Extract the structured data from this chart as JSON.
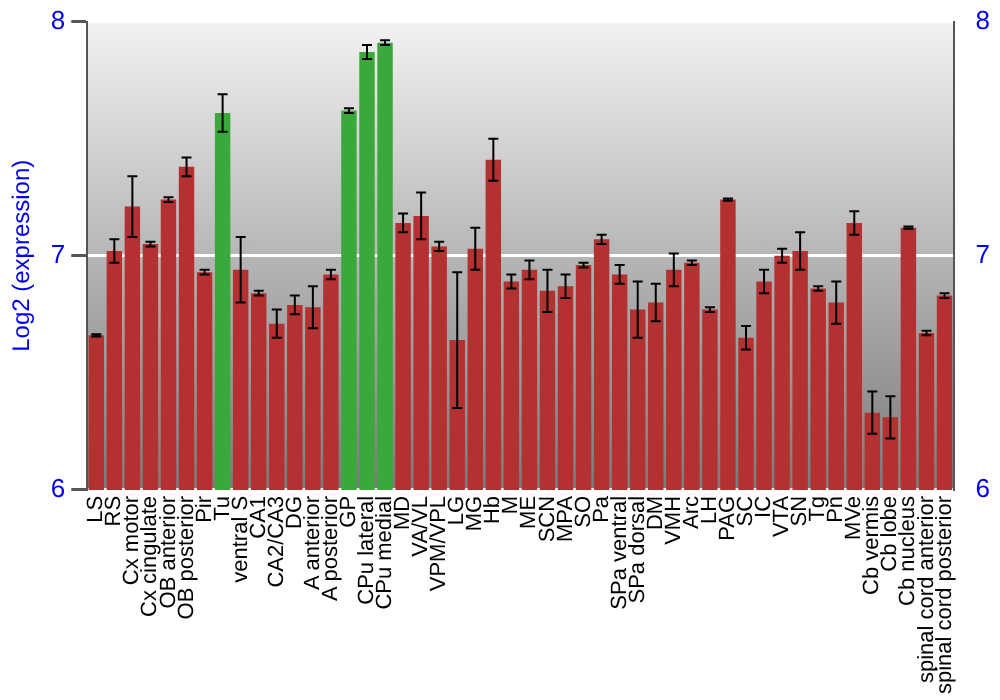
{
  "chart_data": {
    "type": "bar",
    "ylabel": "Log2 (expression)",
    "categories": [
      "LS",
      "RS",
      "Cx motor",
      "Cx cingulate",
      "OB anterior",
      "OB posterior",
      "Pir",
      "Tu",
      "ventral S",
      "CA1",
      "CA2/CA3",
      "DG",
      "A anterior",
      "A posterior",
      "GP",
      "CPu lateral",
      "CPu medial",
      "MD",
      "VA/VL",
      "VPM/VPL",
      "LG",
      "MG",
      "Hb",
      "M",
      "ME",
      "SCN",
      "MPA",
      "SO",
      "Pa",
      "SPa ventral",
      "SPa dorsal",
      "DM",
      "VMH",
      "Arc",
      "LH",
      "PAG",
      "SC",
      "IC",
      "VTA",
      "SN",
      "Tg",
      "Pn",
      "MVe",
      "Cb vermis",
      "Cb lobe",
      "Cb nucleus",
      "spinal cord anterior",
      "spinal cord posterior"
    ],
    "values": [
      6.66,
      7.02,
      7.21,
      7.05,
      7.24,
      7.38,
      6.93,
      7.61,
      6.94,
      6.84,
      6.71,
      6.79,
      6.78,
      6.92,
      7.62,
      7.87,
      7.91,
      7.14,
      7.17,
      7.04,
      6.64,
      7.03,
      7.41,
      6.89,
      6.94,
      6.85,
      6.87,
      6.96,
      7.07,
      6.92,
      6.77,
      6.8,
      6.94,
      6.97,
      6.77,
      7.24,
      6.65,
      6.89,
      7.0,
      7.02,
      6.86,
      6.8,
      7.14,
      6.33,
      6.31,
      7.12,
      6.67,
      6.83
    ],
    "errors": [
      0.005,
      0.05,
      0.13,
      0.01,
      0.01,
      0.04,
      0.01,
      0.08,
      0.14,
      0.01,
      0.06,
      0.04,
      0.09,
      0.02,
      0.01,
      0.03,
      0.01,
      0.04,
      0.1,
      0.02,
      0.29,
      0.09,
      0.09,
      0.03,
      0.04,
      0.09,
      0.05,
      0.01,
      0.02,
      0.04,
      0.12,
      0.08,
      0.07,
      0.01,
      0.01,
      0.005,
      0.05,
      0.05,
      0.03,
      0.08,
      0.01,
      0.09,
      0.05,
      0.09,
      0.09,
      0.005,
      0.01,
      0.01
    ],
    "colors": [
      "#b33131",
      "#b33131",
      "#b33131",
      "#b33131",
      "#b33131",
      "#b33131",
      "#b33131",
      "#3aa83a",
      "#b33131",
      "#b33131",
      "#b33131",
      "#b33131",
      "#b33131",
      "#b33131",
      "#3aa83a",
      "#3aa83a",
      "#3aa83a",
      "#b33131",
      "#b33131",
      "#b33131",
      "#b33131",
      "#b33131",
      "#b33131",
      "#b33131",
      "#b33131",
      "#b33131",
      "#b33131",
      "#b33131",
      "#b33131",
      "#b33131",
      "#b33131",
      "#b33131",
      "#b33131",
      "#b33131",
      "#b33131",
      "#b33131",
      "#b33131",
      "#b33131",
      "#b33131",
      "#b33131",
      "#b33131",
      "#b33131",
      "#b33131",
      "#b33131",
      "#b33131",
      "#b33131",
      "#b33131",
      "#b33131"
    ],
    "ylim": [
      6,
      8
    ],
    "yticks": [
      6,
      7,
      8
    ],
    "y2lim": [
      6,
      8
    ],
    "y2ticks": [
      6,
      7,
      8
    ],
    "grid": "y",
    "legend": false
  }
}
